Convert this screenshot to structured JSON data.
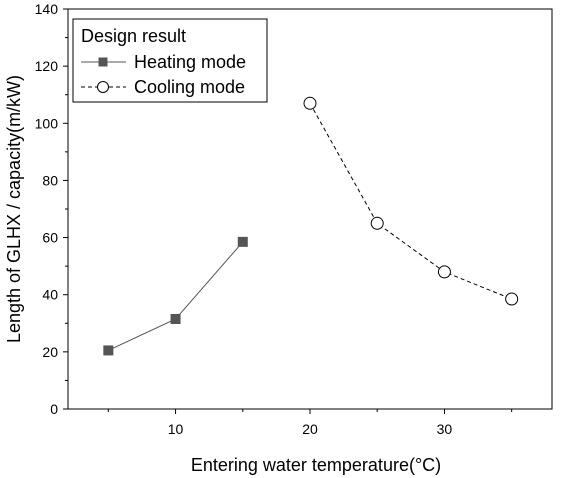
{
  "chart_data": {
    "type": "line",
    "xlabel": "Entering water temperature(°C)",
    "ylabel": "Length of GLHX / capacity(m/kW)",
    "xlim": [
      2,
      38
    ],
    "ylim": [
      0,
      140
    ],
    "xticks": [
      10,
      20,
      30
    ],
    "yticks": [
      0,
      20,
      40,
      60,
      80,
      100,
      120,
      140
    ],
    "grid": false,
    "legend": {
      "title": "Design result",
      "placement": "top-left"
    },
    "series": [
      {
        "name": "Heating mode",
        "marker": "filled-square",
        "line": "solid",
        "color": "#555555",
        "x": [
          5,
          10,
          15
        ],
        "y": [
          20.5,
          31.5,
          58.5
        ]
      },
      {
        "name": "Cooling mode",
        "marker": "open-circle",
        "line": "dashed",
        "color": "#000000",
        "x": [
          20,
          25,
          30,
          35
        ],
        "y": [
          107,
          65,
          48,
          38.5
        ]
      }
    ]
  }
}
